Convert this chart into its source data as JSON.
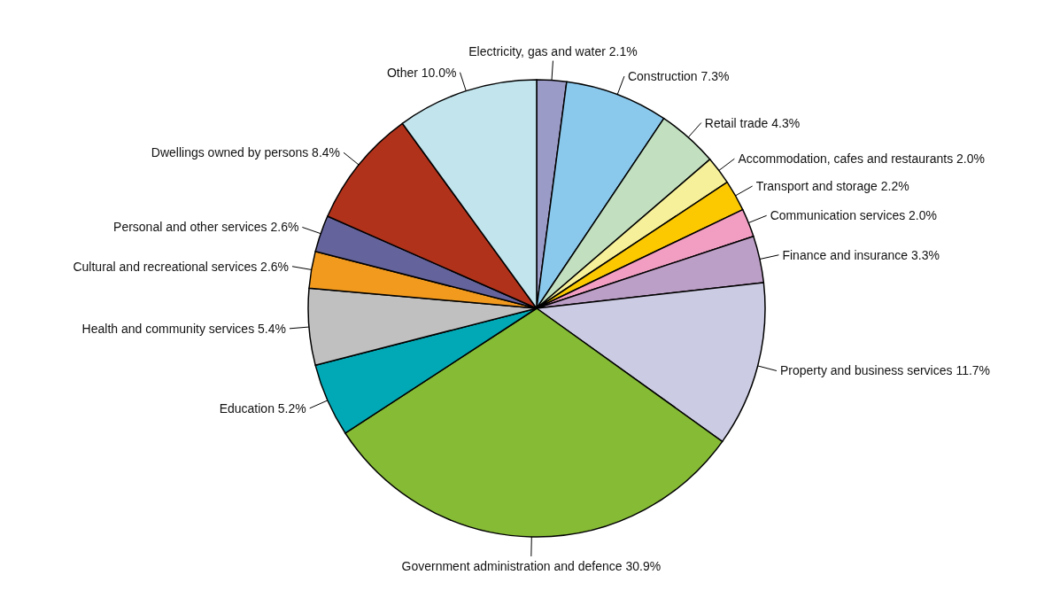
{
  "chart_data": {
    "type": "pie",
    "categories": [
      "Electricity, gas and water",
      "Construction",
      "Retail trade",
      "Accommodation, cafes and restaurants",
      "Transport and storage",
      "Communication services",
      "Finance and insurance",
      "Property and business services",
      "Government administration and defence",
      "Education",
      "Health and community services",
      "Cultural and recreational services",
      "Personal and other services",
      "Dwellings owned by persons",
      "Other"
    ],
    "values": [
      2.1,
      7.3,
      4.3,
      2.0,
      2.2,
      2.0,
      3.3,
      11.7,
      30.9,
      5.2,
      5.4,
      2.6,
      2.6,
      8.4,
      10.0
    ],
    "value_labels": [
      "2.1%",
      "7.3%",
      "4.3%",
      "2.0%",
      "2.2%",
      "2.0%",
      "3.3%",
      "11.7%",
      "30.9%",
      "5.2%",
      "5.4%",
      "2.6%",
      "2.6%",
      "8.4%",
      "10.0%"
    ],
    "colors": [
      "#9b9bc8",
      "#8ac8ec",
      "#c2dfc0",
      "#f7f09a",
      "#fcc800",
      "#f19ec2",
      "#bc9fc6",
      "#cbcbe3",
      "#86bb35",
      "#00a9b5",
      "#c0c0c0",
      "#f29a1e",
      "#64639c",
      "#b1321b",
      "#c1e4ed"
    ]
  }
}
